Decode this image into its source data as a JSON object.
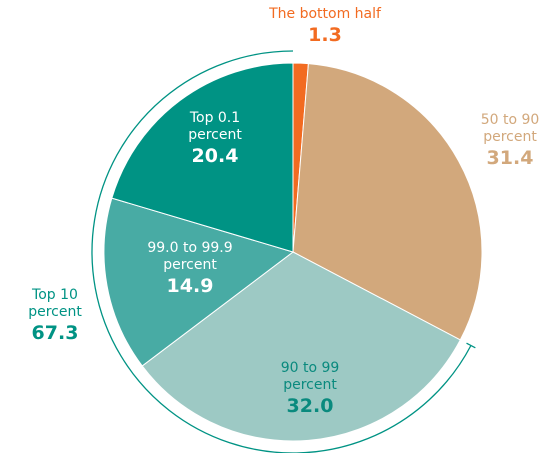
{
  "chart_data": {
    "type": "pie",
    "categories": [
      "The bottom half",
      "50 to 90 percent",
      "90 to 99 percent",
      "99.0 to 99.9 percent",
      "Top 0.1 percent"
    ],
    "values": [
      1.3,
      31.4,
      32.0,
      14.9,
      20.4
    ],
    "value_labels": [
      "1.3",
      "31.4",
      "32.0",
      "14.9",
      "20.4"
    ],
    "colors": [
      "#f26b21",
      "#d2a87c",
      "#9dc9c4",
      "#48aba4",
      "#009384"
    ],
    "annotation": {
      "text": "Top 10 percent",
      "value": 67.3,
      "color": "#009384"
    }
  }
}
